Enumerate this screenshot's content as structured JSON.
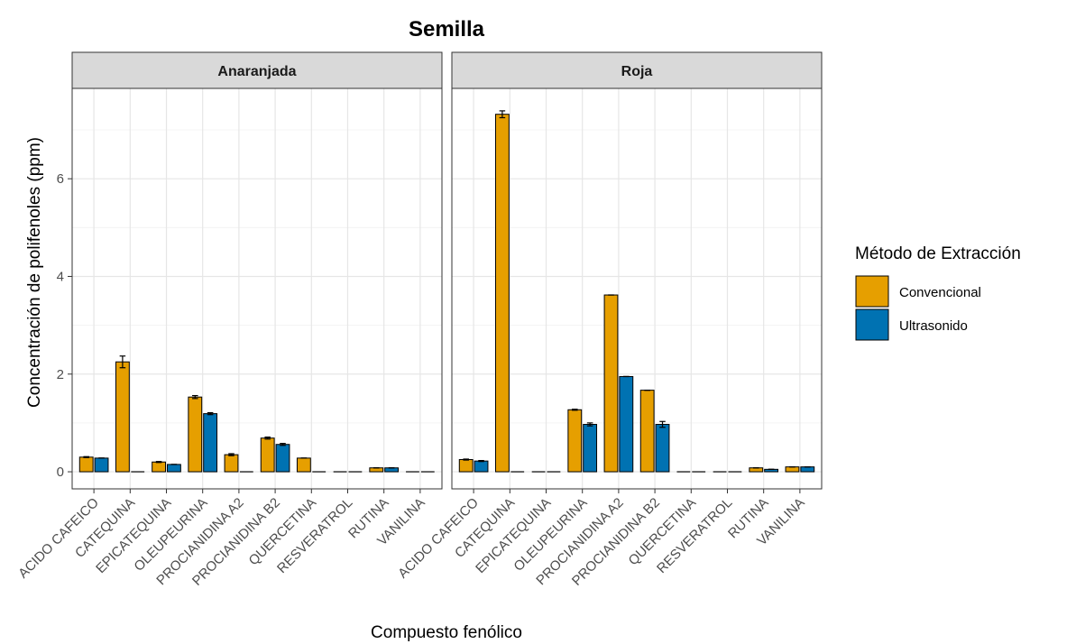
{
  "chart_data": {
    "type": "bar",
    "title": "Semilla",
    "xlabel": "Compuesto fenólico",
    "ylabel": "Concentración de polifenoles (ppm)",
    "ylim": [
      -0.35,
      7.85
    ],
    "yticks": [
      0,
      2,
      4,
      6
    ],
    "grid": true,
    "legend": {
      "title": "Método de Extracción",
      "position": "right",
      "entries": [
        "Convencional",
        "Ultrasonido"
      ]
    },
    "categories": [
      "ACIDO CAFEICO",
      "CATEQUINA",
      "EPICATEQUINA",
      "OLEUPEURINA",
      "PROCIANIDINA A2",
      "PROCIANIDINA B2",
      "QUERCETINA",
      "RESVERATROL",
      "RUTINA",
      "VANILINA"
    ],
    "series_colors": {
      "Convencional": "#E69F00",
      "Ultrasonido": "#0072B2"
    },
    "facets": [
      {
        "label": "Anaranjada",
        "series": [
          {
            "name": "Convencional",
            "values": [
              0.3,
              2.25,
              0.2,
              1.53,
              0.35,
              0.69,
              0.28,
              0,
              0.08,
              0
            ],
            "errors": [
              0.01,
              0.12,
              0.01,
              0.03,
              0.02,
              0.02,
              0,
              0,
              0,
              0
            ]
          },
          {
            "name": "Ultrasonido",
            "values": [
              0.28,
              0,
              0.15,
              1.19,
              0,
              0.56,
              0,
              0,
              0.08,
              0
            ],
            "errors": [
              0,
              0,
              0,
              0.02,
              0,
              0.02,
              0,
              0,
              0,
              0
            ]
          }
        ]
      },
      {
        "label": "Roja",
        "series": [
          {
            "name": "Convencional",
            "values": [
              0.25,
              7.32,
              0,
              1.27,
              3.62,
              1.67,
              0,
              0,
              0.08,
              0.1
            ],
            "errors": [
              0.01,
              0.07,
              0,
              0.01,
              0,
              0,
              0,
              0,
              0,
              0
            ]
          },
          {
            "name": "Ultrasonido",
            "values": [
              0.22,
              0,
              0,
              0.97,
              1.95,
              0.97,
              0,
              0,
              0.05,
              0.1
            ],
            "errors": [
              0.01,
              0,
              0,
              0.03,
              0,
              0.06,
              0,
              0,
              0,
              0
            ]
          }
        ]
      }
    ]
  }
}
